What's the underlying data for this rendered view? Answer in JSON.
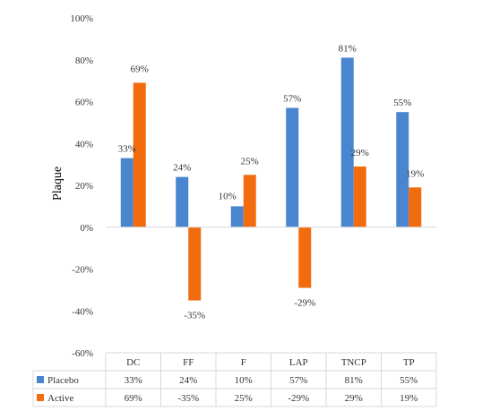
{
  "chart_data": {
    "type": "bar",
    "title": "",
    "ylabel": "Plaque",
    "xlabel": "",
    "categories": [
      "DC",
      "FF",
      "F",
      "LAP",
      "TNCP",
      "TP"
    ],
    "series": [
      {
        "name": "Placebo",
        "values": [
          33,
          24,
          10,
          57,
          81,
          55
        ],
        "labels": [
          "33%",
          "24%",
          "10%",
          "57%",
          "81%",
          "55%"
        ],
        "color": "#4a86cf"
      },
      {
        "name": "Active",
        "values": [
          69,
          -35,
          25,
          -29,
          29,
          19
        ],
        "labels": [
          "69%",
          "-35%",
          "25%",
          "-29%",
          "29%",
          "19%"
        ],
        "color": "#f26b0f"
      }
    ],
    "ylim": [
      -60,
      100
    ],
    "yticks": [
      100,
      80,
      60,
      40,
      20,
      0,
      -20,
      -40,
      -60
    ],
    "ytick_labels": [
      "100%",
      "80%",
      "60%",
      "40%",
      "20%",
      "0%",
      "-20%",
      "-40%",
      "-60%"
    ],
    "grid": false,
    "legend": "data-table",
    "data_table": {
      "rows": [
        {
          "series": "Placebo",
          "cells": [
            "33%",
            "24%",
            "10%",
            "57%",
            "81%",
            "55%"
          ]
        },
        {
          "series": "Active",
          "cells": [
            "69%",
            "-35%",
            "25%",
            "-29%",
            "29%",
            "19%"
          ]
        }
      ]
    }
  }
}
